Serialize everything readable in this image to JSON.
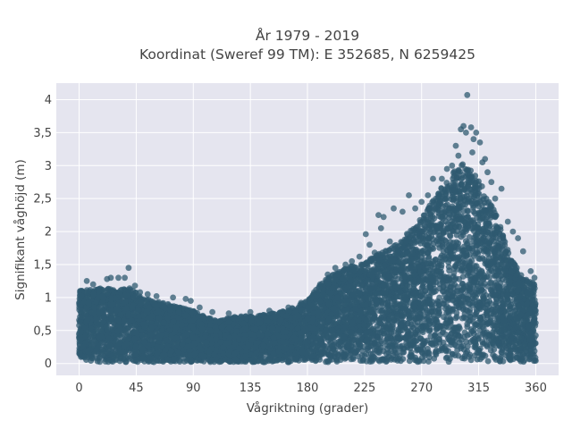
{
  "chart_data": {
    "type": "scatter",
    "title_lines": [
      "År 1979 - 2019",
      "Koordinat (Sweref 99 TM): E 352685, N 6259425"
    ],
    "xlabel": "Vågriktning (grader)",
    "ylabel": "Signifikant våghöjd (m)",
    "xlim": [
      -18,
      378
    ],
    "ylim": [
      -0.18,
      4.25
    ],
    "x_ticks": [
      0,
      45,
      90,
      135,
      180,
      225,
      270,
      315,
      360
    ],
    "x_tick_labels": [
      "0",
      "45",
      "90",
      "135",
      "180",
      "225",
      "270",
      "315",
      "360"
    ],
    "y_ticks": [
      0,
      0.5,
      1,
      1.5,
      2,
      2.5,
      3,
      3.5,
      4
    ],
    "y_tick_labels": [
      "0",
      "0,5",
      "1",
      "1,5",
      "2",
      "2,5",
      "3",
      "3,5",
      "4"
    ],
    "grid": true,
    "marker_color": "#2f5a70",
    "plot_bg": "#e5e5ef",
    "envelope": {
      "x": [
        0,
        10,
        20,
        30,
        40,
        50,
        60,
        70,
        80,
        90,
        100,
        110,
        120,
        130,
        140,
        150,
        160,
        170,
        180,
        190,
        200,
        210,
        220,
        230,
        240,
        250,
        260,
        270,
        280,
        290,
        300,
        305,
        310,
        315,
        320,
        330,
        340,
        350,
        360
      ],
      "y": [
        1.1,
        1.12,
        1.15,
        1.1,
        1.15,
        1.0,
        0.95,
        0.9,
        0.85,
        0.8,
        0.7,
        0.65,
        0.7,
        0.72,
        0.72,
        0.75,
        0.8,
        0.85,
        0.95,
        1.2,
        1.35,
        1.45,
        1.5,
        1.6,
        1.7,
        1.8,
        2.0,
        2.2,
        2.5,
        2.8,
        3.0,
        3.05,
        2.9,
        2.8,
        2.6,
        2.2,
        1.6,
        1.3,
        1.2
      ],
      "floor": 0.02
    },
    "outliers": [
      {
        "x": 306,
        "y": 4.07
      },
      {
        "x": 303,
        "y": 3.6
      },
      {
        "x": 309,
        "y": 3.58
      },
      {
        "x": 301,
        "y": 3.55
      },
      {
        "x": 305,
        "y": 3.5
      },
      {
        "x": 297,
        "y": 3.3
      },
      {
        "x": 311,
        "y": 3.4
      },
      {
        "x": 316,
        "y": 3.35
      },
      {
        "x": 310,
        "y": 3.2
      },
      {
        "x": 294,
        "y": 3.0
      },
      {
        "x": 290,
        "y": 2.95
      },
      {
        "x": 318,
        "y": 3.05
      },
      {
        "x": 320,
        "y": 3.1
      },
      {
        "x": 322,
        "y": 2.9
      },
      {
        "x": 325,
        "y": 2.75
      },
      {
        "x": 333,
        "y": 2.65
      },
      {
        "x": 328,
        "y": 2.5
      },
      {
        "x": 313,
        "y": 3.5
      },
      {
        "x": 299,
        "y": 3.15
      },
      {
        "x": 286,
        "y": 2.8
      },
      {
        "x": 279,
        "y": 2.8
      },
      {
        "x": 275,
        "y": 2.55
      },
      {
        "x": 260,
        "y": 2.55
      },
      {
        "x": 265,
        "y": 2.35
      },
      {
        "x": 270,
        "y": 2.45
      },
      {
        "x": 255,
        "y": 2.3
      },
      {
        "x": 248,
        "y": 2.35
      },
      {
        "x": 238,
        "y": 2.05
      },
      {
        "x": 240,
        "y": 2.22
      },
      {
        "x": 236,
        "y": 2.25
      },
      {
        "x": 229,
        "y": 1.8
      },
      {
        "x": 226,
        "y": 1.96
      },
      {
        "x": 245,
        "y": 1.85
      },
      {
        "x": 233,
        "y": 1.68
      },
      {
        "x": 221,
        "y": 1.62
      },
      {
        "x": 215,
        "y": 1.55
      },
      {
        "x": 210,
        "y": 1.5
      },
      {
        "x": 202,
        "y": 1.45
      },
      {
        "x": 196,
        "y": 1.35
      },
      {
        "x": 190,
        "y": 1.2
      },
      {
        "x": 338,
        "y": 2.15
      },
      {
        "x": 342,
        "y": 2.0
      },
      {
        "x": 346,
        "y": 1.9
      },
      {
        "x": 350,
        "y": 1.7
      },
      {
        "x": 345,
        "y": 1.45
      },
      {
        "x": 356,
        "y": 1.4
      },
      {
        "x": 359,
        "y": 1.3
      },
      {
        "x": 39,
        "y": 1.45
      },
      {
        "x": 36,
        "y": 1.3
      },
      {
        "x": 31,
        "y": 1.3
      },
      {
        "x": 22,
        "y": 1.28
      },
      {
        "x": 25,
        "y": 1.3
      },
      {
        "x": 6,
        "y": 1.25
      },
      {
        "x": 11,
        "y": 1.2
      },
      {
        "x": 44,
        "y": 1.18
      },
      {
        "x": 48,
        "y": 1.08
      },
      {
        "x": 54,
        "y": 1.05
      },
      {
        "x": 61,
        "y": 1.02
      },
      {
        "x": 74,
        "y": 1.0
      },
      {
        "x": 84,
        "y": 0.98
      },
      {
        "x": 88,
        "y": 0.95
      },
      {
        "x": 95,
        "y": 0.85
      },
      {
        "x": 105,
        "y": 0.78
      },
      {
        "x": 118,
        "y": 0.76
      },
      {
        "x": 135,
        "y": 0.78
      },
      {
        "x": 150,
        "y": 0.8
      },
      {
        "x": 165,
        "y": 0.85
      },
      {
        "x": 175,
        "y": 0.92
      },
      {
        "x": 183,
        "y": 1.0
      }
    ],
    "density_per_degree": 22
  }
}
